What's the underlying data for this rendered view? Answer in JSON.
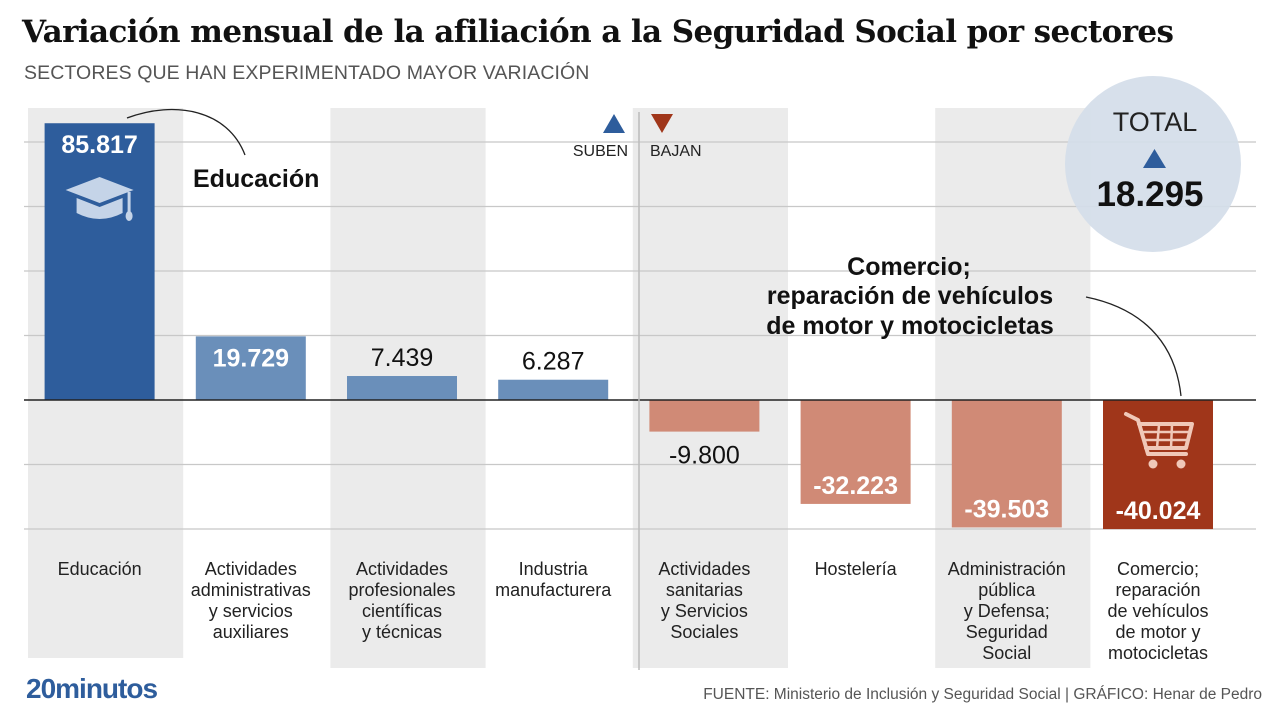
{
  "header": {
    "title": "Variación mensual de la afiliación a la Seguridad Social por sectores",
    "subtitle": "SECTORES QUE HAN EXPERIMENTADO MAYOR VARIACIÓN"
  },
  "legend": {
    "up_label": "SUBEN",
    "down_label": "BAJAN",
    "up_icon": "triangle-up-icon",
    "down_icon": "triangle-down-icon"
  },
  "total": {
    "label": "TOTAL",
    "value": "18.295",
    "direction_icon": "triangle-up-icon"
  },
  "callouts": {
    "top_positive": "Educación",
    "top_negative": [
      "Comercio;",
      "reparación de vehículos",
      "de motor y motocicletas"
    ]
  },
  "colors": {
    "up_strong": "#2e5d9c",
    "up_light": "#6a8fba",
    "down_strong": "#a0361a",
    "down_light": "#d08a76",
    "column_shade": "#ebebeb",
    "total_circle": "#d4dde9"
  },
  "chart_data": {
    "type": "bar",
    "title": "Variación mensual de la afiliación a la Seguridad Social por sectores",
    "subtitle": "SECTORES QUE HAN EXPERIMENTADO MAYOR VARIACIÓN",
    "xlabel": "",
    "ylabel": "",
    "ylim": [
      -40000,
      85817
    ],
    "grid": true,
    "gridlines": [
      -40000,
      -20000,
      20000,
      40000,
      60000,
      80000
    ],
    "categories": [
      [
        "Educación"
      ],
      [
        "Actividades",
        "administrativas",
        "y servicios",
        "auxiliares"
      ],
      [
        "Actividades",
        "profesionales",
        "científicas",
        "y técnicas"
      ],
      [
        "Industria",
        "manufacturera"
      ],
      [
        "Actividades",
        "sanitarias",
        "y Servicios",
        "Sociales"
      ],
      [
        "Hostelería"
      ],
      [
        "Administración",
        "pública",
        "y Defensa;",
        "Seguridad",
        "Social"
      ],
      [
        "Comercio;",
        "reparación",
        "de vehículos",
        "de motor y",
        "motocicletas"
      ]
    ],
    "values": [
      85817,
      19729,
      7439,
      6287,
      -9800,
      -32223,
      -39503,
      -40024
    ],
    "labels": [
      "85.817",
      "19.729",
      "7.439",
      "6.287",
      "-9.800",
      "-32.223",
      "-39.503",
      "-40.024"
    ],
    "icons": [
      "graduation-cap-icon",
      null,
      null,
      null,
      null,
      null,
      null,
      "shopping-cart-icon"
    ],
    "legend": [
      "SUBEN",
      "BAJAN"
    ],
    "total": 18295
  },
  "footer": {
    "logo": "20minutos",
    "source": "FUENTE: Ministerio de Inclusión y Seguridad Social  |  GRÁFICO: Henar de Pedro"
  }
}
